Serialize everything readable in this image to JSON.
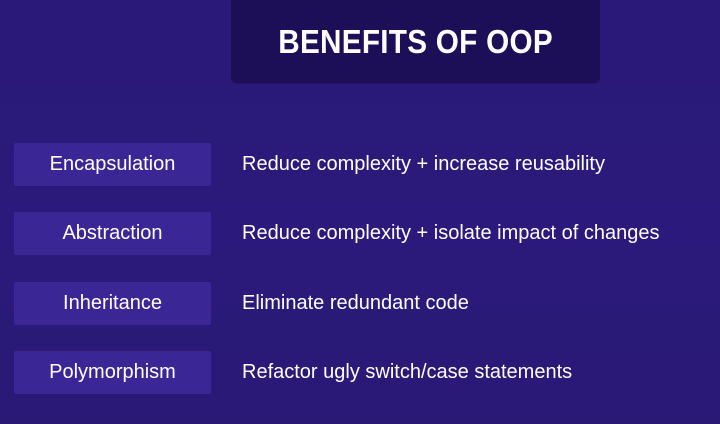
{
  "slide": {
    "title": "BENEFITS OF OOP",
    "rows": [
      {
        "term": "Encapsulation",
        "benefit": "Reduce complexity + increase reusability"
      },
      {
        "term": "Abstraction",
        "benefit": "Reduce complexity + isolate impact of changes"
      },
      {
        "term": "Inheritance",
        "benefit": "Eliminate redundant code"
      },
      {
        "term": "Polymorphism",
        "benefit": "Refactor ugly switch/case statements"
      }
    ]
  },
  "colors": {
    "background": "#2b1a7a",
    "title_box": "#1c0f57",
    "term_box": "#3b2696",
    "text": "#ffffff"
  }
}
